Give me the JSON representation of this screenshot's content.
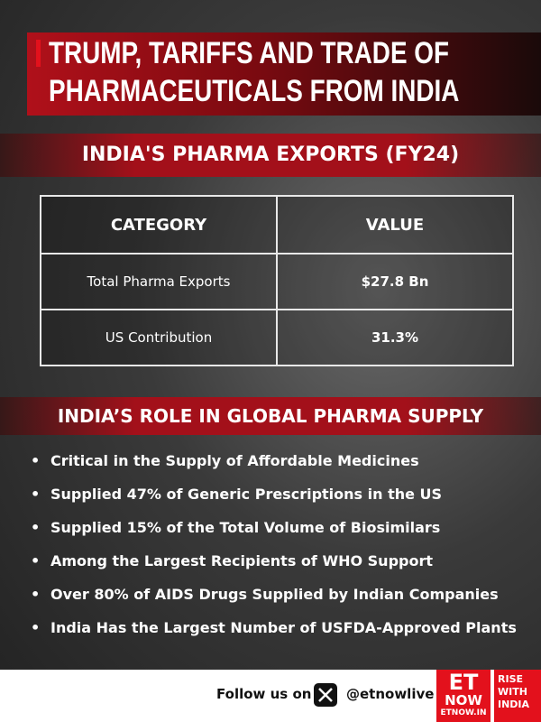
{
  "header": {
    "title_lines": [
      "TRUMP, TARIFFS AND TRADE OF",
      "PHARMACEUTICALS FROM INDIA"
    ]
  },
  "section1": {
    "title": "INDIA'S PHARMA EXPORTS (FY24)"
  },
  "table": {
    "columns": [
      "CATEGORY",
      "VALUE"
    ],
    "rows": [
      [
        "Total Pharma Exports",
        "$27.8 Bn"
      ],
      [
        "US Contribution",
        "31.3%"
      ]
    ]
  },
  "section2": {
    "title": "INDIA’S ROLE IN GLOBAL PHARMA SUPPLY",
    "bullets": [
      "Critical in the Supply of Affordable Medicines",
      "Supplied 47% of Generic Prescriptions in the US",
      "Supplied 15% of the Total Volume of Biosimilars",
      "Among the Largest Recipients of WHO Support",
      "Over 80% of AIDS Drugs Supplied by Indian Companies",
      "India Has the Largest Number of USFDA-Approved Plants"
    ]
  },
  "footer": {
    "follow": "Follow us on",
    "handle": "@etnowlive",
    "logo": {
      "top": "ET",
      "bottom": "NOW",
      "site": "ETNOW.IN"
    },
    "slogan_lines": [
      "RISE",
      "WITH",
      "INDIA"
    ]
  }
}
